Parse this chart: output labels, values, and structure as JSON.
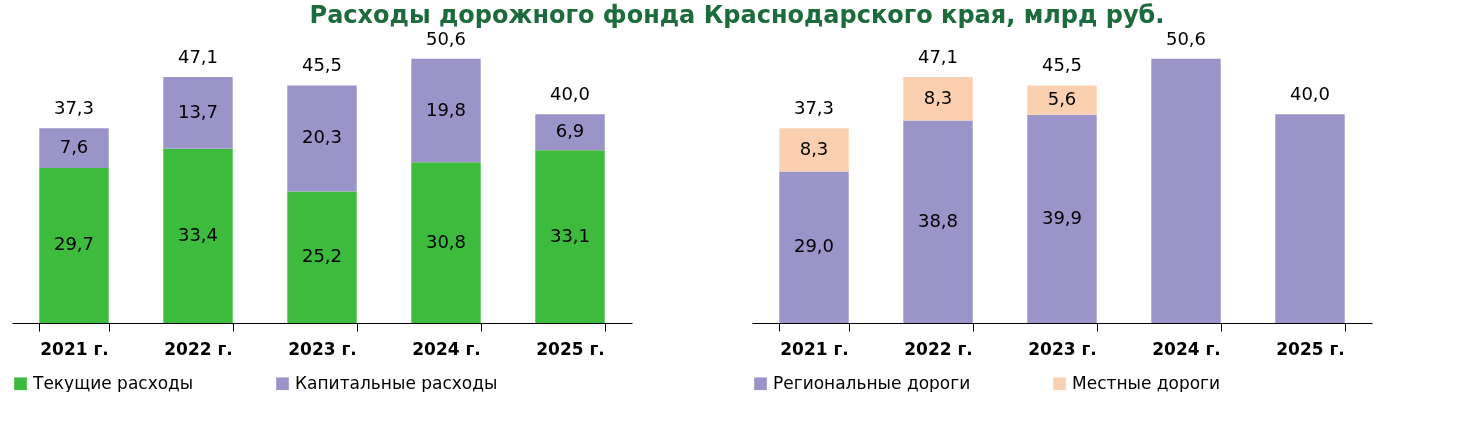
{
  "chart_data": [
    {
      "type": "bar",
      "title": "Расходы дорожного фонда Краснодарского края, млрд руб.",
      "stacked": true,
      "legend": "bottom",
      "grid": false,
      "categories": [
        "2021 г.",
        "2022 г.",
        "2023 г.",
        "2024 г.",
        "2025 г."
      ],
      "series": [
        {
          "name": "Текущие расходы",
          "color": "#3dbb3d",
          "values": [
            29.7,
            33.4,
            25.2,
            30.8,
            33.1
          ],
          "value_labels": [
            "29,7",
            "33,4",
            "25,2",
            "30,8",
            "33,1"
          ]
        },
        {
          "name": "Капитальные расходы",
          "color": "#9b94c8",
          "values": [
            7.6,
            13.7,
            20.3,
            19.8,
            6.9
          ],
          "value_labels": [
            "7,6",
            "13,7",
            "20,3",
            "19,8",
            "6,9"
          ]
        }
      ],
      "totals": [
        "37,3",
        "47,1",
        "45,5",
        "50,6",
        "40,0"
      ]
    },
    {
      "type": "bar",
      "stacked": true,
      "legend": "bottom",
      "grid": false,
      "categories": [
        "2021 г.",
        "2022 г.",
        "2023 г.",
        "2024 г.",
        "2025 г."
      ],
      "series": [
        {
          "name": "Региональные дороги",
          "color": "#9b94c8",
          "values": [
            29.0,
            38.8,
            39.9,
            50.6,
            40.0
          ],
          "value_labels": [
            "29,0",
            "38,8",
            "39,9",
            null,
            null
          ]
        },
        {
          "name": "Местные дороги",
          "color": "#fbd0b0",
          "values": [
            8.3,
            8.3,
            5.6,
            null,
            null
          ],
          "value_labels": [
            "8,3",
            "8,3",
            "5,6",
            null,
            null
          ]
        }
      ],
      "totals": [
        "37,3",
        "47,1",
        "45,5",
        "50,6",
        "40,0"
      ]
    }
  ]
}
